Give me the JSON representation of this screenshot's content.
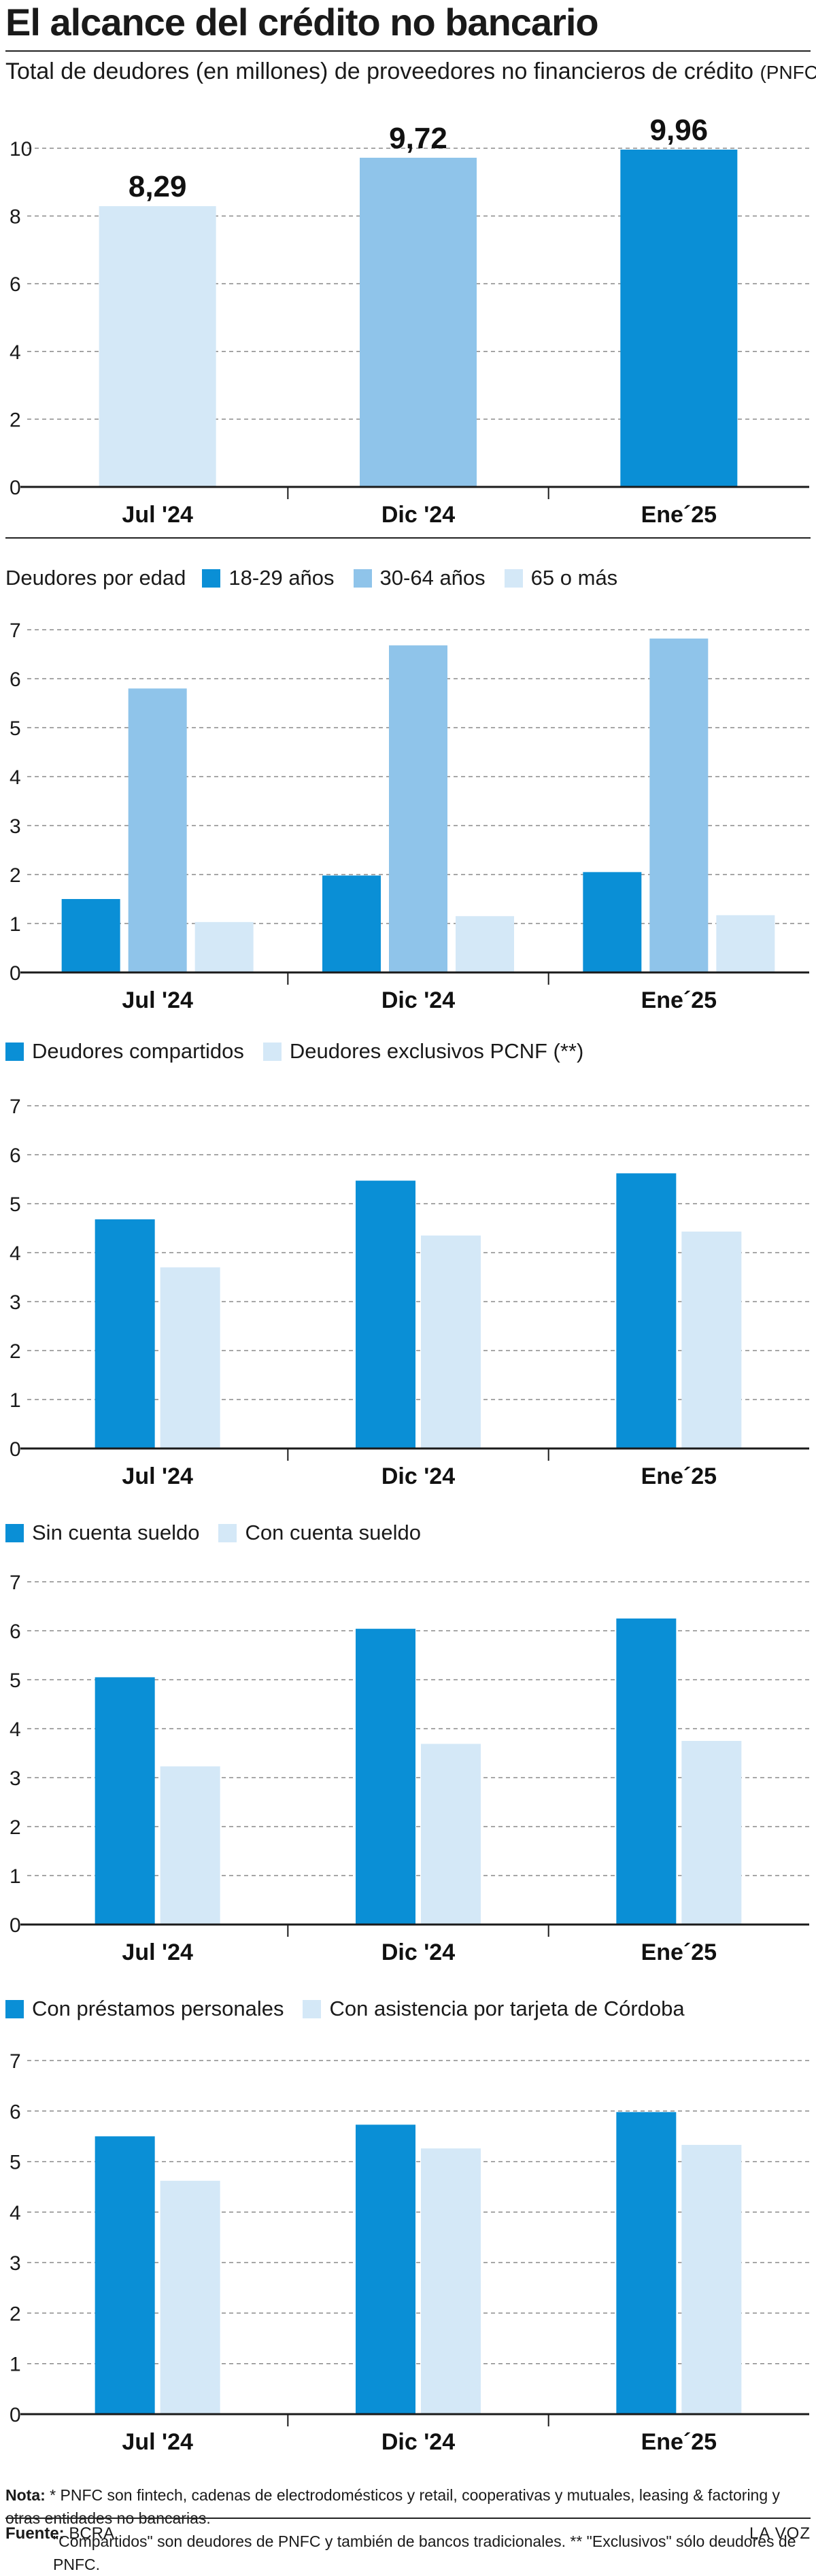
{
  "header": {
    "title": "El alcance del crédito no bancario",
    "subtitle": "Total de deudores (en millones) de proveedores no financieros de crédito",
    "subtitle_note": "(PNFC *)."
  },
  "colors": {
    "dark": "#0a8fd6",
    "mid": "#8fc4ea",
    "light": "#d4e8f7",
    "grid": "#8a8a8a",
    "axis": "#1a1a1a"
  },
  "chart_data": [
    {
      "type": "bar",
      "categories": [
        "Jul '24",
        "Dic '24",
        "Ene´25"
      ],
      "values": [
        8.29,
        9.72,
        9.96
      ],
      "data_labels": [
        "8,29",
        "9,72",
        "9,96"
      ],
      "bar_colors": [
        "light",
        "mid",
        "dark"
      ],
      "ylim": [
        0,
        10
      ],
      "yticks": [
        0,
        2,
        4,
        6,
        8,
        10
      ],
      "grid": true
    },
    {
      "type": "bar",
      "legend_title": "Deudores por edad",
      "categories": [
        "Jul '24",
        "Dic '24",
        "Ene´25"
      ],
      "series": [
        {
          "name": "18-29 años",
          "color": "dark",
          "values": [
            1.5,
            1.98,
            2.05
          ]
        },
        {
          "name": "30-64 años",
          "color": "mid",
          "values": [
            5.8,
            6.68,
            6.82
          ]
        },
        {
          "name": "65 o más",
          "color": "light",
          "values": [
            1.03,
            1.15,
            1.17
          ]
        }
      ],
      "ylim": [
        0,
        7
      ],
      "yticks": [
        0,
        1,
        2,
        3,
        4,
        5,
        6,
        7
      ],
      "grid": true
    },
    {
      "type": "bar",
      "categories": [
        "Jul '24",
        "Dic '24",
        "Ene´25"
      ],
      "series": [
        {
          "name": "Deudores compartidos",
          "color": "dark",
          "values": [
            4.68,
            5.47,
            5.62
          ]
        },
        {
          "name": "Deudores exclusivos PCNF (**)",
          "color": "light",
          "values": [
            3.7,
            4.35,
            4.43
          ]
        }
      ],
      "ylim": [
        0,
        7
      ],
      "yticks": [
        0,
        1,
        2,
        3,
        4,
        5,
        6,
        7
      ],
      "grid": true
    },
    {
      "type": "bar",
      "categories": [
        "Jul '24",
        "Dic '24",
        "Ene´25"
      ],
      "series": [
        {
          "name": "Sin cuenta sueldo",
          "color": "dark",
          "values": [
            5.05,
            6.04,
            6.25
          ]
        },
        {
          "name": "Con cuenta sueldo",
          "color": "light",
          "values": [
            3.23,
            3.69,
            3.75
          ]
        }
      ],
      "ylim": [
        0,
        7
      ],
      "yticks": [
        0,
        1,
        2,
        3,
        4,
        5,
        6,
        7
      ],
      "grid": true
    },
    {
      "type": "bar",
      "categories": [
        "Jul '24",
        "Dic '24",
        "Ene´25"
      ],
      "series": [
        {
          "name": "Con préstamos personales",
          "color": "dark",
          "values": [
            5.5,
            5.73,
            5.98
          ]
        },
        {
          "name": "Con asistencia por tarjeta de Córdoba",
          "color": "light",
          "values": [
            4.62,
            5.26,
            5.33
          ]
        }
      ],
      "ylim": [
        0,
        7
      ],
      "yticks": [
        0,
        1,
        2,
        3,
        4,
        5,
        6,
        7
      ],
      "grid": true
    }
  ],
  "footer": {
    "note_label": "Nota:",
    "note_line1": " * PNFC son fintech, cadenas de electrodomésticos y retail, cooperativas y mutuales, leasing & factoring y otras entidades no bancarias.",
    "note_line2": "\"Compartidos\" son deudores de PNFC y también de bancos tradicionales. ** \"Exclusivos\" sólo deudores de PNFC.",
    "source_label": "Fuente:",
    "source_value": " BCRA",
    "brand": "LA VOZ"
  }
}
